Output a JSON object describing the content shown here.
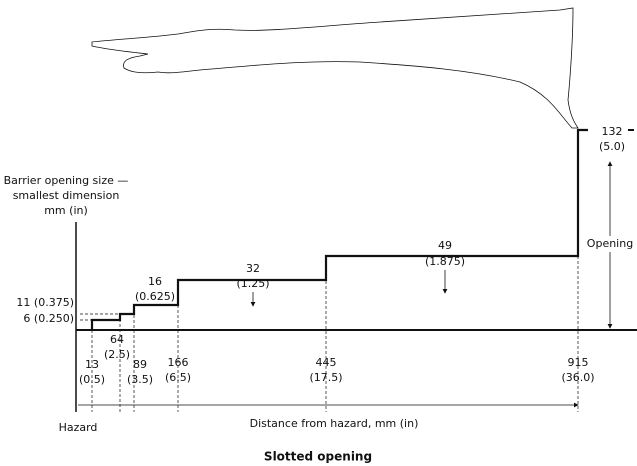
{
  "y_axis_label": [
    "Barrier opening size —",
    "smallest dimension",
    "mm (in)"
  ],
  "left_labels": [
    "11 (0.375)",
    "6 (0.250)"
  ],
  "step_labels": [
    {
      "mm": "64",
      "in": "(2.5)"
    },
    {
      "mm": "16",
      "in": "(0.625)"
    },
    {
      "mm": "32",
      "in": "(1.25)"
    },
    {
      "mm": "49",
      "in": "(1.875)"
    },
    {
      "mm": "132",
      "in": "(5.0)"
    }
  ],
  "opening_label": "Opening",
  "distance_labels": [
    {
      "mm": "13",
      "in": "(0.5)"
    },
    {
      "mm": "89",
      "in": "(3.5)"
    },
    {
      "mm": "166",
      "in": "(6.5)"
    },
    {
      "mm": "445",
      "in": "(17.5)"
    },
    {
      "mm": "915",
      "in": "(36.0)"
    }
  ],
  "hazard_label": "Hazard",
  "x_axis_label": "Distance from hazard, mm (in)",
  "caption": "Slotted opening"
}
